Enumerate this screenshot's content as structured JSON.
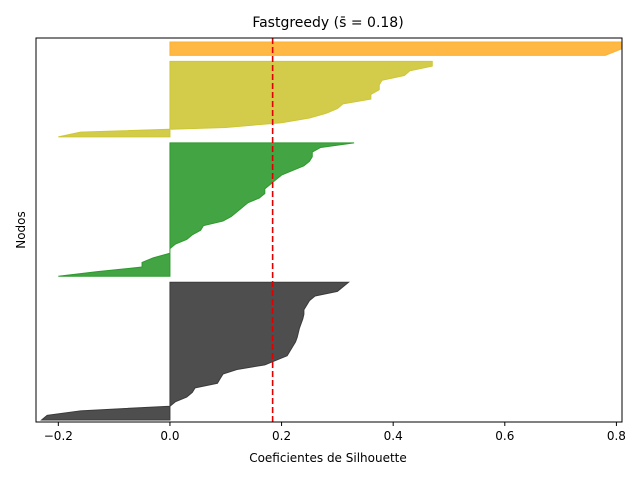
{
  "chart_data": {
    "type": "area",
    "title": "Fastgreedy ($\\bar{s}$ = 0.18)",
    "title_prefix": "Fastgreedy (",
    "title_symbol": "s̄",
    "title_suffix": " = 0.18)",
    "xlabel": "Coeficientes de Silhouette",
    "ylabel": "Nodos",
    "xlim": [
      -0.24,
      0.81
    ],
    "xticks": [
      -0.2,
      0.0,
      0.2,
      0.4,
      0.6,
      0.8
    ],
    "xtick_labels": [
      "−0.2",
      "0.0",
      "0.2",
      "0.4",
      "0.6",
      "0.8"
    ],
    "grid": false,
    "mean_line": {
      "value": 0.184,
      "color": "#e00000",
      "style": "dashed"
    },
    "clusters": [
      {
        "color": "#3b3b3b",
        "values": [
          0.32,
          0.31,
          0.3,
          0.26,
          0.25,
          0.245,
          0.24,
          0.24,
          0.238,
          0.235,
          0.232,
          0.23,
          0.228,
          0.225,
          0.22,
          0.215,
          0.21,
          0.19,
          0.17,
          0.12,
          0.095,
          0.09,
          0.085,
          0.045,
          0.04,
          0.03,
          0.01,
          0.0,
          -0.16,
          -0.22,
          -0.23
        ]
      },
      {
        "color": "#2e9a2e",
        "values": [
          0.33,
          0.27,
          0.255,
          0.255,
          0.25,
          0.24,
          0.22,
          0.2,
          0.19,
          0.18,
          0.17,
          0.17,
          0.16,
          0.14,
          0.13,
          0.12,
          0.11,
          0.095,
          0.06,
          0.055,
          0.04,
          0.03,
          0.01,
          0.0,
          0.0,
          -0.03,
          -0.05,
          -0.05,
          -0.13,
          -0.2
        ]
      },
      {
        "color": "#cdc736",
        "values": [
          0.47,
          0.47,
          0.43,
          0.42,
          0.38,
          0.375,
          0.375,
          0.36,
          0.36,
          0.31,
          0.3,
          0.28,
          0.25,
          0.2,
          0.1,
          -0.16,
          -0.2
        ]
      },
      {
        "color": "#ffb030",
        "values": [
          0.81,
          0.81,
          0.78
        ]
      }
    ]
  }
}
